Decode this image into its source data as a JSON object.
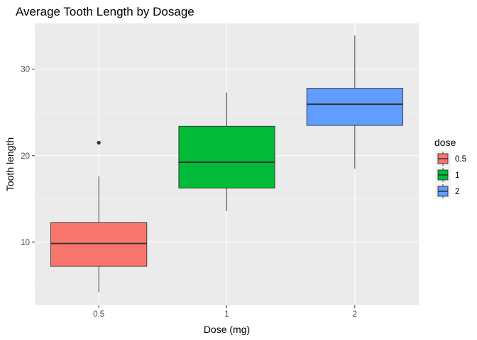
{
  "chart_data": {
    "type": "boxplot",
    "title": "Average Tooth Length by Dosage",
    "xlabel": "Dose (mg)",
    "ylabel": "Tooth length",
    "categories": [
      "0.5",
      "1",
      "2"
    ],
    "ylim": [
      2.7,
      35.3
    ],
    "yticks": [
      10,
      20,
      30
    ],
    "grid": true,
    "legend": {
      "title": "dose",
      "position": "right",
      "labels": [
        "0.5",
        "1",
        "2"
      ]
    },
    "colors": [
      "#F8766D",
      "#00BA38",
      "#619CFF"
    ],
    "boxes": [
      {
        "category": "0.5",
        "min": 4.2,
        "q1": 7.2,
        "median": 9.85,
        "q3": 12.25,
        "max": 17.6,
        "outliers": [
          21.5
        ]
      },
      {
        "category": "1",
        "min": 13.6,
        "q1": 16.25,
        "median": 19.25,
        "q3": 23.4,
        "max": 27.3,
        "outliers": []
      },
      {
        "category": "2",
        "min": 18.5,
        "q1": 23.5,
        "median": 25.95,
        "q3": 27.8,
        "max": 33.9,
        "outliers": []
      }
    ]
  }
}
